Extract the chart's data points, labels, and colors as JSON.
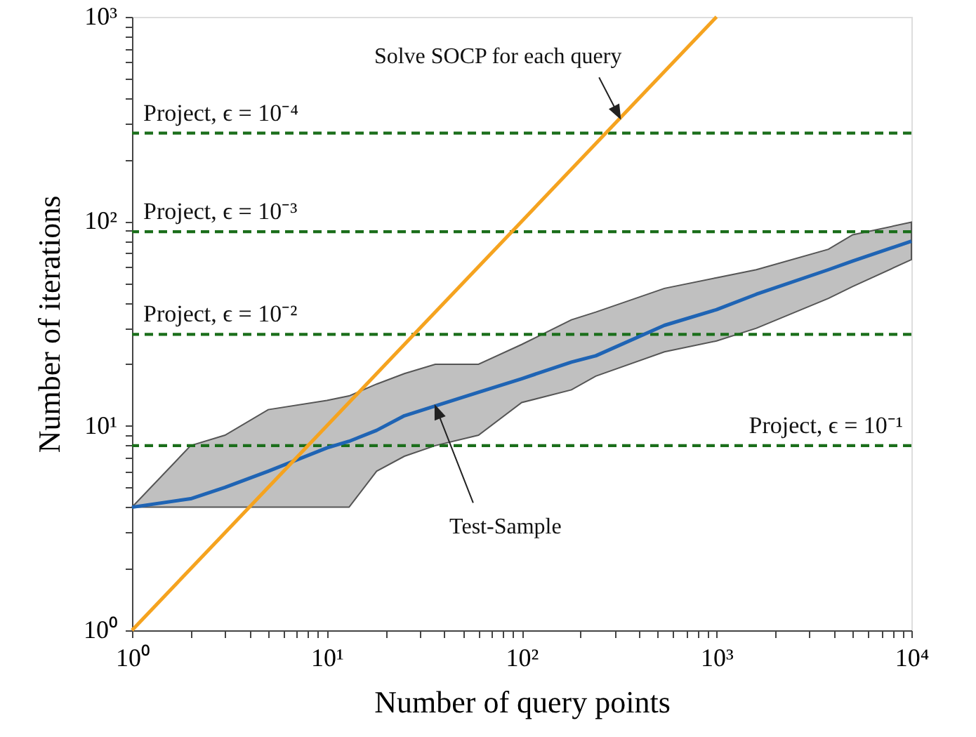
{
  "chart_data": {
    "type": "line",
    "xlabel": "Number of query points",
    "ylabel": "Number of iterations",
    "xlim": [
      1,
      10000
    ],
    "ylim": [
      1,
      1000
    ],
    "log": "xy",
    "grid": false,
    "marker": "none",
    "line_style": "solid",
    "xticks": [
      {
        "value": 1,
        "label": "10⁰"
      },
      {
        "value": 2,
        "label": null
      },
      {
        "value": 3,
        "label": null
      },
      {
        "value": 4,
        "label": null
      },
      {
        "value": 5,
        "label": null
      },
      {
        "value": 6,
        "label": null
      },
      {
        "value": 7,
        "label": null
      },
      {
        "value": 8,
        "label": null
      },
      {
        "value": 9,
        "label": null
      },
      {
        "value": 10,
        "label": "10¹"
      },
      {
        "value": 20,
        "label": null
      },
      {
        "value": 30,
        "label": null
      },
      {
        "value": 40,
        "label": null
      },
      {
        "value": 50,
        "label": null
      },
      {
        "value": 60,
        "label": null
      },
      {
        "value": 70,
        "label": null
      },
      {
        "value": 80,
        "label": null
      },
      {
        "value": 90,
        "label": null
      },
      {
        "value": 100,
        "label": "10²"
      },
      {
        "value": 200,
        "label": null
      },
      {
        "value": 300,
        "label": null
      },
      {
        "value": 400,
        "label": null
      },
      {
        "value": 500,
        "label": null
      },
      {
        "value": 600,
        "label": null
      },
      {
        "value": 700,
        "label": null
      },
      {
        "value": 800,
        "label": null
      },
      {
        "value": 900,
        "label": null
      },
      {
        "value": 1000,
        "label": "10³"
      },
      {
        "value": 2000,
        "label": null
      },
      {
        "value": 3000,
        "label": null
      },
      {
        "value": 4000,
        "label": null
      },
      {
        "value": 5000,
        "label": null
      },
      {
        "value": 6000,
        "label": null
      },
      {
        "value": 7000,
        "label": null
      },
      {
        "value": 8000,
        "label": null
      },
      {
        "value": 9000,
        "label": null
      },
      {
        "value": 10000,
        "label": "10⁴"
      }
    ],
    "yticks": [
      {
        "value": 1,
        "label": "10⁰"
      },
      {
        "value": 2,
        "label": null
      },
      {
        "value": 3,
        "label": null
      },
      {
        "value": 4,
        "label": null
      },
      {
        "value": 5,
        "label": null
      },
      {
        "value": 6,
        "label": null
      },
      {
        "value": 7,
        "label": null
      },
      {
        "value": 8,
        "label": null
      },
      {
        "value": 9,
        "label": null
      },
      {
        "value": 10,
        "label": "10¹"
      },
      {
        "value": 20,
        "label": null
      },
      {
        "value": 30,
        "label": null
      },
      {
        "value": 40,
        "label": null
      },
      {
        "value": 50,
        "label": null
      },
      {
        "value": 60,
        "label": null
      },
      {
        "value": 70,
        "label": null
      },
      {
        "value": 80,
        "label": null
      },
      {
        "value": 90,
        "label": null
      },
      {
        "value": 100,
        "label": "10²"
      },
      {
        "value": 200,
        "label": null
      },
      {
        "value": 300,
        "label": null
      },
      {
        "value": 400,
        "label": null
      },
      {
        "value": 500,
        "label": null
      },
      {
        "value": 600,
        "label": null
      },
      {
        "value": 700,
        "label": null
      },
      {
        "value": 800,
        "label": null
      },
      {
        "value": 900,
        "label": null
      },
      {
        "value": 1000,
        "label": "10³"
      }
    ],
    "series": [
      {
        "color": "#1f64b4",
        "x": [
          1,
          2,
          3,
          5,
          10,
          13,
          18,
          25,
          36,
          60,
          100,
          180,
          240,
          540,
          1000,
          1600,
          3750,
          5000,
          10000
        ],
        "values": [
          4.0,
          4.4,
          5.0,
          6.0,
          7.8,
          8.4,
          9.5,
          11.2,
          12.5,
          14.6,
          17,
          20.5,
          22,
          31,
          37,
          44,
          58,
          64,
          80
        ],
        "lower": [
          4,
          4,
          4,
          4,
          4,
          4,
          6,
          7.1,
          8,
          9,
          13,
          15,
          17.5,
          23,
          26,
          30,
          42,
          48,
          65
        ],
        "upper": [
          4,
          8,
          9,
          12,
          13.3,
          14,
          16,
          18,
          20,
          20,
          25,
          33,
          36,
          47,
          53,
          58,
          73,
          86,
          99
        ]
      },
      {
        "color": "#f5a31f",
        "x": [
          1,
          1000
        ],
        "values": [
          1,
          1000
        ]
      }
    ],
    "ref_lines": [
      {
        "axis": "y",
        "value": 270,
        "color": "#1b6e1b",
        "line_style": "dashed"
      },
      {
        "axis": "y",
        "value": 89,
        "color": "#1b6e1b",
        "line_style": "dashed"
      },
      {
        "axis": "y",
        "value": 28,
        "color": "#1b6e1b",
        "line_style": "dashed"
      },
      {
        "axis": "y",
        "value": 8,
        "color": "#1b6e1b",
        "line_style": "dashed"
      }
    ],
    "annotations": [
      "Project, ϵ = 10⁻⁴",
      "Project, ϵ = 10⁻³",
      "Project, ϵ = 10⁻²",
      "Project, ϵ = 10⁻¹",
      {
        "text": "Solve SOCP for each query",
        "x": 320,
        "y": 320
      },
      {
        "text": "Test-Sample",
        "x": 36,
        "y": 12.5
      }
    ]
  }
}
